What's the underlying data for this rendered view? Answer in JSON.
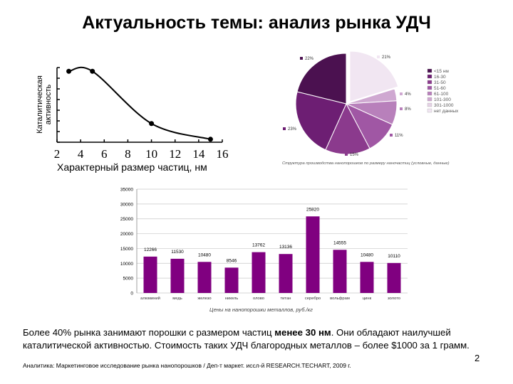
{
  "slide": {
    "title": "Актуальность темы: анализ рынка УДЧ",
    "note_part1": "Более 40% рынка занимают порошки с размером частиц ",
    "note_bold": "менее 30 нм",
    "note_part2": ". Они обладают наилучшей каталитической активностью. Стоимость таких УДЧ благородных металлов – более  $1000 за 1 грамм.",
    "source": "Аналитика: Маркетинговое исследование рынка нанопорошков / Деп-т маркет. иссл-й RESEARCH.TECHART, 2009 г.",
    "page_number": "2"
  },
  "chart_data": [
    {
      "type": "line",
      "title": "",
      "xlabel": "Характерный размер частиц, нм",
      "ylabel": "Каталитическая активность",
      "x_ticks": [
        "2",
        "4",
        "6",
        "8",
        "10",
        "12",
        "14",
        "16"
      ],
      "xlim": [
        2,
        16
      ],
      "ylim": [
        0,
        1
      ],
      "y_ticks_labeled": false,
      "series": [
        {
          "x": [
            3,
            5,
            10,
            15
          ],
          "y": [
            0.95,
            0.95,
            0.25,
            0.04
          ]
        }
      ]
    },
    {
      "type": "pie",
      "caption": "Структура производства нанопорошков по размеру наночастиц (условные, данные)",
      "legend_position": "right",
      "slices": [
        {
          "label": "<15 нм",
          "value": 22,
          "color": "#4b1150"
        },
        {
          "label": "16-30",
          "value": 23,
          "color": "#6d1e73"
        },
        {
          "label": "31-50",
          "value": 15,
          "color": "#8b3a8d"
        },
        {
          "label": "51-60",
          "value": 11,
          "color": "#a057a4"
        },
        {
          "label": "61-100",
          "value": 8,
          "color": "#b880bb"
        },
        {
          "label": "101-300",
          "value": 4,
          "color": "#cfa8d1"
        },
        {
          "label": "301-1000",
          "value": 1,
          "color": "#e5d2e6"
        },
        {
          "label": "нет данных",
          "value": 21,
          "color": "#f1e6f2"
        }
      ],
      "display_order": [
        "нет данных",
        "101-300",
        "61-100",
        "51-60",
        "31-50",
        "16-30",
        "<15 нм"
      ],
      "slice_labels": [
        "21%",
        "4%",
        "8%",
        "11%",
        "15%",
        "23%",
        "22%"
      ]
    },
    {
      "type": "bar",
      "xlabel": "Цены на нанопорошки металлов, руб./кг",
      "ylim": [
        0,
        35000
      ],
      "y_ticks": [
        "0",
        "5000",
        "10000",
        "15000",
        "20000",
        "25000",
        "30000",
        "35000"
      ],
      "grid": true,
      "bar_color": "#800080",
      "categories": [
        "алюминий",
        "медь",
        "железо",
        "никель",
        "олово",
        "титан",
        "серебро",
        "вольфрам",
        "цинк",
        "золото"
      ],
      "values": [
        12266,
        11530,
        10480,
        8546,
        13762,
        13136,
        25820,
        14555,
        10480,
        10110
      ],
      "value_labels": [
        "12266",
        "11530",
        "10480",
        "8546",
        "13762",
        "13136",
        "25820",
        "14555",
        "10480",
        "10110"
      ]
    }
  ]
}
